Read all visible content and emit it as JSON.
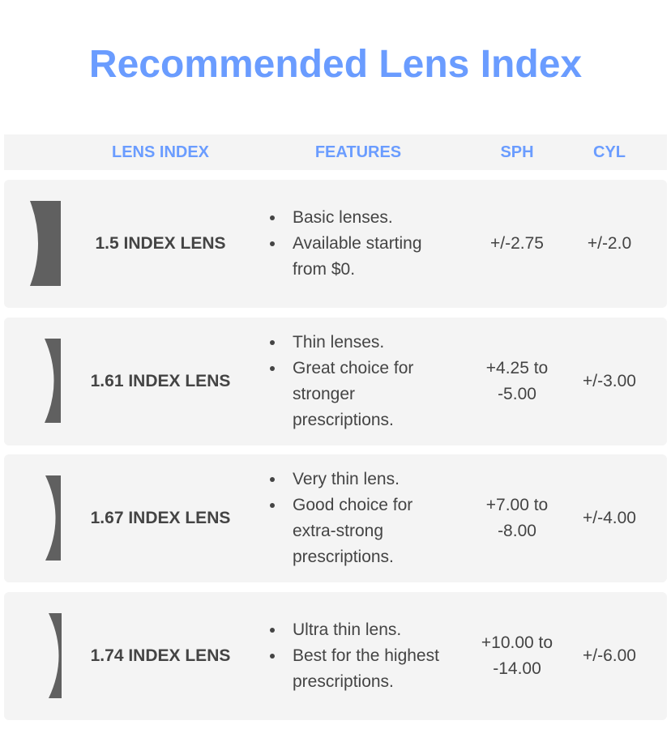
{
  "title": "Recommended Lens Index",
  "colors": {
    "accent": "#6a9cff",
    "row_bg": "#f4f4f4",
    "text": "#444444",
    "lens": "#606060"
  },
  "headers": {
    "lens_index": "LENS INDEX",
    "features": "FEATURES",
    "sph": "SPH",
    "cyl": "CYL"
  },
  "rows": [
    {
      "name": "1.5 INDEX LENS",
      "features": [
        "Basic lenses.",
        "Available starting from $0."
      ],
      "sph": "+/-2.75",
      "cyl": "+/-2.0"
    },
    {
      "name": "1.61 INDEX LENS",
      "features": [
        "Thin lenses.",
        "Great choice for stronger prescriptions."
      ],
      "sph": "+4.25 to -5.00",
      "cyl": "+/-3.00"
    },
    {
      "name": "1.67 INDEX LENS",
      "features": [
        "Very thin lens.",
        "Good choice for extra-strong prescriptions."
      ],
      "sph": "+7.00 to -8.00",
      "cyl": "+/-4.00"
    },
    {
      "name": "1.74 INDEX LENS",
      "features": [
        "Ultra thin lens.",
        "Best for the highest prescriptions."
      ],
      "sph": "+10.00 to -14.00",
      "cyl": "+/-6.00"
    }
  ]
}
